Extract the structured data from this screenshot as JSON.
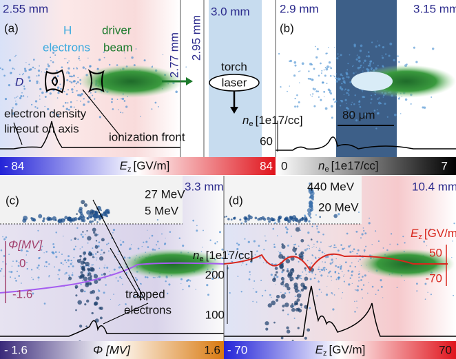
{
  "panel_a": {
    "label": "(a)",
    "position": "2.55 mm",
    "species_label": "H",
    "species_label_2": "electrons",
    "beam_label": "driver",
    "beam_label_2": "beam",
    "bubble_label": "D",
    "lineout_label": "electron density",
    "lineout_label_2": "lineout on axis",
    "front_label": "ionization front"
  },
  "slice": {
    "position": "3.0 mm",
    "cut_1": "2.77 mm",
    "cut_2": "2.95 mm",
    "torch_label": "torch",
    "laser_label": "laser"
  },
  "panel_b": {
    "label": "(b)",
    "position_left": "2.9 mm",
    "position_right": "3.15 mm",
    "axis_symbol": "n",
    "axis_subscript": "e",
    "axis_unit": "[1e17/cc]",
    "axis_tick": "60",
    "scale_bar": "80 μm"
  },
  "colorbar_a": {
    "min": "- 84",
    "max": "84",
    "symbol": "E",
    "subscript": "z",
    "unit": "[GV/m]"
  },
  "colorbar_b": {
    "min": "0",
    "max": "7",
    "symbol": "n",
    "subscript": "e",
    "unit": "[1e17/cc]"
  },
  "panel_c": {
    "label": "(c)",
    "position": "3.3 mm",
    "energy_high": "27 MeV",
    "energy_low": "5 MeV",
    "axis_label": "Φ[MV]",
    "axis_tick_top": "0",
    "axis_tick_bottom": "-1.6",
    "trapped_label": "trapped",
    "trapped_label_2": "electrons"
  },
  "panel_d": {
    "label": "(d)",
    "position": "10.4 mm",
    "energy_high": "440 MeV",
    "energy_low": "20 MeV",
    "left_axis_symbol": "n",
    "left_axis_subscript": "e",
    "left_axis_unit": "[1e17/cc]",
    "left_tick_top": "200",
    "left_tick_bottom": "100",
    "right_axis_symbol": "E",
    "right_axis_subscript": "z",
    "right_axis_unit": "[GV/m]",
    "right_tick_top": "50",
    "right_tick_bottom": "-70"
  },
  "colorbar_c": {
    "min": "- 1.6",
    "max": "1.6",
    "label": "Φ [MV]"
  },
  "colorbar_d": {
    "min": "- 70",
    "max": "70",
    "symbol": "E",
    "subscript": "z",
    "unit": "[GV/m]"
  }
}
